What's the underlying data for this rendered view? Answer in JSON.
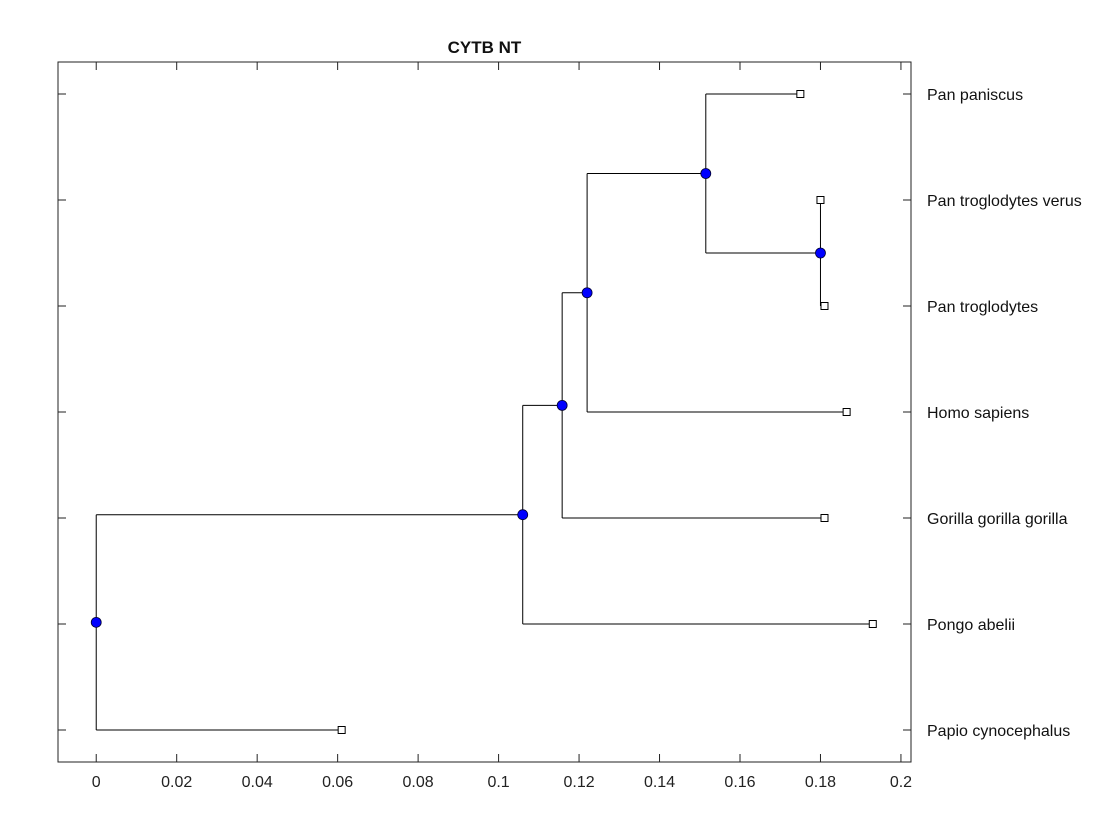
{
  "chart_data": {
    "type": "dendrogram",
    "title": "CYTB NT",
    "xlim": [
      -0.0095,
      0.2025
    ],
    "x_ticks": [
      0,
      0.02,
      0.04,
      0.06,
      0.08,
      0.1,
      0.12,
      0.14,
      0.16,
      0.18,
      0.2
    ],
    "x_tick_labels": [
      "0",
      "0.02",
      "0.04",
      "0.06",
      "0.08",
      "0.1",
      "0.12",
      "0.14",
      "0.16",
      "0.18",
      "0.2"
    ],
    "grid": false,
    "leaves": [
      {
        "id": "L1",
        "label": "Pan paniscus",
        "x": 0.175
      },
      {
        "id": "L2",
        "label": "Pan troglodytes verus",
        "x": 0.18
      },
      {
        "id": "L3",
        "label": "Pan troglodytes",
        "x": 0.181
      },
      {
        "id": "L4",
        "label": "Homo sapiens",
        "x": 0.1865
      },
      {
        "id": "L5",
        "label": "Gorilla gorilla gorilla",
        "x": 0.181
      },
      {
        "id": "L6",
        "label": "Pongo abelii",
        "x": 0.193
      },
      {
        "id": "L7",
        "label": "Papio cynocephalus",
        "x": 0.061
      }
    ],
    "internal_nodes": [
      {
        "id": "N1",
        "x": 0.18,
        "children": [
          "L2",
          "L3"
        ]
      },
      {
        "id": "N2",
        "x": 0.1515,
        "children": [
          "L1",
          "N1"
        ]
      },
      {
        "id": "N3",
        "x": 0.122,
        "children": [
          "N2",
          "L4"
        ]
      },
      {
        "id": "N4",
        "x": 0.1158,
        "children": [
          "N3",
          "L5"
        ]
      },
      {
        "id": "N5",
        "x": 0.106,
        "children": [
          "N4",
          "L6"
        ]
      },
      {
        "id": "N6",
        "x": 0.0,
        "children": [
          "N5",
          "L7"
        ]
      }
    ],
    "root": "N6",
    "colors": {
      "branch": "#000000",
      "internal_node": "#0000ff",
      "leaf_node_fill": "#ffffff",
      "axes": "#222222"
    }
  }
}
